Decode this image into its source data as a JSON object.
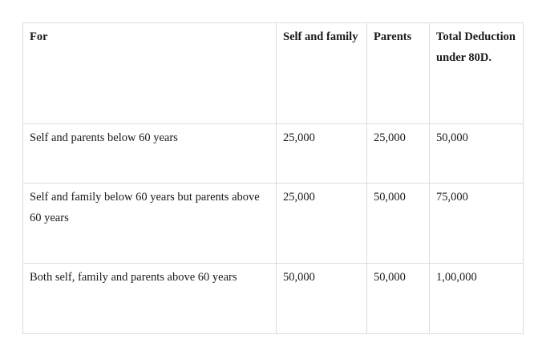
{
  "table": {
    "headers": [
      "For",
      "Self and family",
      "Parents",
      "Total Deduction under 80D."
    ],
    "rows": [
      [
        "Self and parents below 60 years",
        "25,000",
        "25,000",
        "50,000"
      ],
      [
        "Self and family below 60 years but parents above 60 years",
        "25,000",
        "50,000",
        "75,000"
      ],
      [
        "Both self, family and parents above 60 years",
        "50,000",
        "50,000",
        "1,00,000"
      ]
    ]
  }
}
